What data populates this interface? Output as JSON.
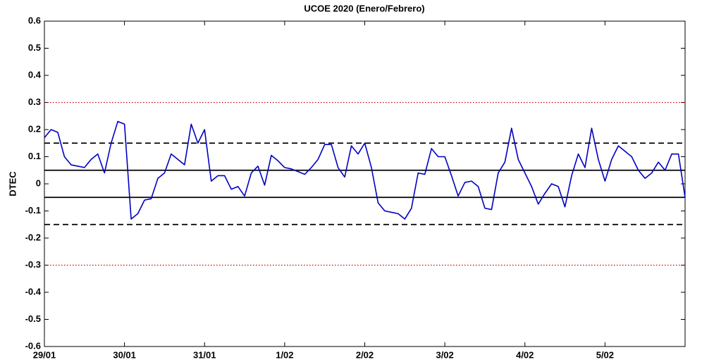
{
  "chart_data": {
    "type": "line",
    "title": "UCOE 2020 (Enero/Febrero)",
    "y_label": "DTEC",
    "xlim": [
      0,
      192
    ],
    "xticks": [
      {
        "value": 0,
        "label": "29/01"
      },
      {
        "value": 24,
        "label": "30/01"
      },
      {
        "value": 48,
        "label": "31/01"
      },
      {
        "value": 72,
        "label": "1/02"
      },
      {
        "value": 96,
        "label": "2/02"
      },
      {
        "value": 120,
        "label": "3/02"
      },
      {
        "value": 144,
        "label": "4/02"
      },
      {
        "value": 168,
        "label": "5/02"
      }
    ],
    "ylim": [
      -0.6,
      0.6
    ],
    "yticks": [
      0.6,
      0.5,
      0.4,
      0.3,
      0.2,
      0.1,
      0,
      -0.1,
      -0.2,
      -0.3,
      -0.4,
      -0.5,
      -0.6
    ],
    "grid": false,
    "x": [
      0,
      2,
      4,
      6,
      8,
      10,
      12,
      14,
      16,
      18,
      20,
      22,
      24,
      26,
      28,
      30,
      32,
      34,
      36,
      38,
      40,
      42,
      44,
      46,
      48,
      50,
      52,
      54,
      56,
      58,
      60,
      62,
      64,
      66,
      68,
      70,
      72,
      74,
      76,
      78,
      80,
      82,
      84,
      86,
      88,
      90,
      92,
      94,
      96,
      98,
      100,
      102,
      104,
      106,
      108,
      110,
      112,
      114,
      116,
      118,
      120,
      122,
      124,
      126,
      128,
      130,
      132,
      134,
      136,
      138,
      140,
      142,
      144,
      146,
      148,
      150,
      152,
      154,
      156,
      158,
      160,
      162,
      164,
      166,
      168,
      170,
      172,
      174,
      176,
      178,
      180,
      182,
      184,
      186,
      188,
      190,
      192
    ],
    "series": [
      {
        "color": "#0000c0",
        "values": [
          0.17,
          0.2,
          0.19,
          0.1,
          0.07,
          0.065,
          0.06,
          0.09,
          0.11,
          0.04,
          0.15,
          0.23,
          0.22,
          -0.13,
          -0.11,
          -0.06,
          -0.055,
          0.02,
          0.04,
          0.11,
          0.09,
          0.07,
          0.22,
          0.15,
          0.2,
          0.01,
          0.03,
          0.03,
          -0.02,
          -0.01,
          -0.045,
          0.04,
          0.065,
          -0.005,
          0.105,
          0.085,
          0.06,
          0.055,
          0.045,
          0.035,
          0.06,
          0.09,
          0.145,
          0.145,
          0.06,
          0.025,
          0.14,
          0.11,
          0.15,
          0.06,
          -0.07,
          -0.1,
          -0.105,
          -0.11,
          -0.13,
          -0.09,
          0.04,
          0.035,
          0.13,
          0.1,
          0.1,
          0.03,
          -0.045,
          0.005,
          0.01,
          -0.01,
          -0.09,
          -0.095,
          0.04,
          0.08,
          0.205,
          0.09,
          0.04,
          -0.01,
          -0.075,
          -0.035,
          0.0,
          -0.01,
          -0.085,
          0.03,
          0.11,
          0.06,
          0.205,
          0.09,
          0.01,
          0.09,
          0.14,
          0.12,
          0.1,
          0.05,
          0.02,
          0.04,
          0.08,
          0.05,
          0.11,
          0.11,
          -0.05
        ]
      }
    ],
    "reference_lines": [
      {
        "value": 0.3,
        "style": "dotted",
        "color": "#d00000"
      },
      {
        "value": 0.15,
        "style": "dashed",
        "color": "#000000"
      },
      {
        "value": 0.05,
        "style": "solid",
        "color": "#000000"
      },
      {
        "value": -0.05,
        "style": "solid",
        "color": "#000000"
      },
      {
        "value": -0.15,
        "style": "dashed",
        "color": "#000000"
      },
      {
        "value": -0.3,
        "style": "dotted",
        "color": "#d00000"
      }
    ]
  }
}
